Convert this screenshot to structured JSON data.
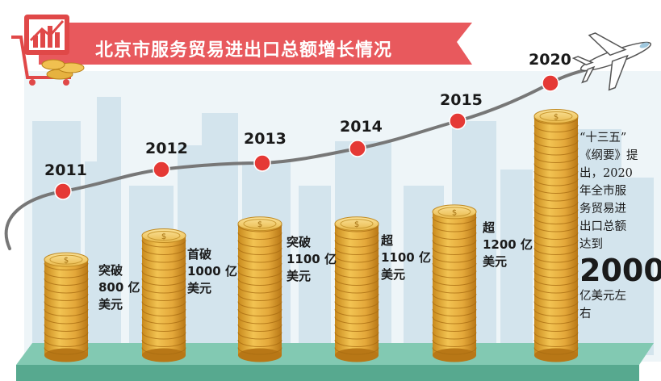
{
  "title": "北京市服务贸易进出口总额增长情况",
  "colors": {
    "banner": "#e8595d",
    "timeline_dot": "#e53935",
    "coin_gold": "#e0a62c",
    "coin_rim": "#f6d479",
    "skyline": "#d2e3ec",
    "ground": "#7fc4b0"
  },
  "icons": [
    "chart-basket-icon",
    "airplane-icon",
    "coin-icon"
  ],
  "chart_data": {
    "type": "bar",
    "title": "北京市服务贸易进出口总额增长情况",
    "unit": "亿美元",
    "categories": [
      "2011",
      "2012",
      "2013",
      "2014",
      "2015",
      "2020"
    ],
    "values": [
      800,
      1000,
      1100,
      1100,
      1200,
      2000
    ],
    "annotations": [
      {
        "year": "2011",
        "lines": [
          "突破",
          "800 亿",
          "美元"
        ]
      },
      {
        "year": "2012",
        "lines": [
          "首破",
          "1000 亿",
          "美元"
        ]
      },
      {
        "year": "2013",
        "lines": [
          "突破",
          "1100 亿",
          "美元"
        ]
      },
      {
        "year": "2014",
        "lines": [
          "超",
          "1100 亿",
          "美元"
        ]
      },
      {
        "year": "2015",
        "lines": [
          "超",
          "1200 亿",
          "美元"
        ]
      },
      {
        "year": "2020",
        "lines": [
          "“十三五”",
          "《纲要》提",
          "出，2020",
          "年全市服",
          "务贸易进",
          "出口总额",
          "达到",
          "2000",
          "亿美元左",
          "右"
        ]
      }
    ]
  }
}
